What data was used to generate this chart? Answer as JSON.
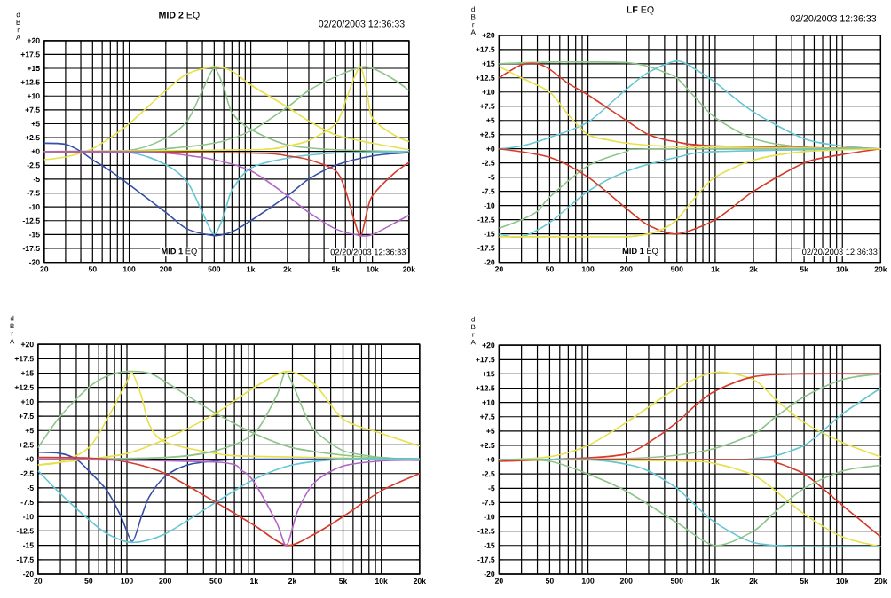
{
  "chart_data": [
    {
      "type": "line",
      "title": "**MID 2** EQ",
      "ylabel": "d B r A",
      "annotations": [
        "02/20/2003 12:36:33",
        "**MID 1** EQ",
        "02/20/2003 12:36:33"
      ],
      "log": "x",
      "grid": true,
      "xlim": [
        20,
        20000
      ],
      "ylim": [
        -20,
        20
      ],
      "xticks": [
        20,
        {
          "value": 30,
          "label": null
        },
        {
          "value": 40,
          "label": null
        },
        50,
        {
          "value": 60,
          "label": null
        },
        {
          "value": 70,
          "label": null
        },
        {
          "value": 80,
          "label": null
        },
        {
          "value": 90,
          "label": null
        },
        100,
        200,
        {
          "value": 300,
          "label": null
        },
        {
          "value": 400,
          "label": null
        },
        500,
        {
          "value": 600,
          "label": null
        },
        {
          "value": 700,
          "label": null
        },
        {
          "value": 800,
          "label": null
        },
        {
          "value": 900,
          "label": null
        },
        {
          "value": 1000,
          "label": "1k"
        },
        {
          "value": 2000,
          "label": "2k"
        },
        {
          "value": 3000,
          "label": null
        },
        {
          "value": 4000,
          "label": null
        },
        {
          "value": 5000,
          "label": "5k"
        },
        {
          "value": 6000,
          "label": null
        },
        {
          "value": 7000,
          "label": null
        },
        {
          "value": 8000,
          "label": null
        },
        {
          "value": 9000,
          "label": null
        },
        {
          "value": 10000,
          "label": "10k"
        },
        {
          "value": 20000,
          "label": "20k"
        }
      ],
      "yticks": [
        {
          "value": 20,
          "label": "+20"
        },
        {
          "value": 17.5,
          "label": "+17.5"
        },
        {
          "value": 15,
          "label": "+15"
        },
        {
          "value": 12.5,
          "label": "+12.5"
        },
        {
          "value": 10,
          "label": "+10"
        },
        {
          "value": 7.5,
          "label": "+7.5"
        },
        {
          "value": 5,
          "label": "+5"
        },
        {
          "value": 2.5,
          "label": "+2.5"
        },
        {
          "value": 0,
          "label": "+0"
        },
        -2.5,
        -5,
        -7.5,
        -10,
        -12.5,
        -15,
        -17.5,
        -20
      ],
      "series": [
        {
          "color": "#e8e04a",
          "x": [
            20,
            30,
            40,
            50,
            70,
            100,
            200,
            300,
            500,
            700,
            1000,
            2000,
            3000,
            5000,
            10000,
            20000
          ],
          "values": [
            -1.5,
            -1,
            -0.3,
            0.5,
            2.5,
            5,
            11,
            14,
            15.3,
            14.5,
            12,
            8,
            5.5,
            3,
            1.5,
            0.3
          ]
        },
        {
          "color": "#8dc48a",
          "x": [
            20,
            100,
            200,
            300,
            400,
            500,
            600,
            700,
            1000,
            2000,
            5000,
            20000
          ],
          "values": [
            0,
            0.2,
            2.4,
            5.5,
            11,
            15,
            11.5,
            7,
            4,
            1.2,
            0.3,
            0
          ]
        },
        {
          "color": "#8dc48a",
          "x": [
            20,
            100,
            200,
            500,
            1000,
            2000,
            3000,
            5000,
            8000,
            10000,
            15000,
            20000
          ],
          "values": [
            0,
            0.1,
            0.5,
            1.5,
            3.7,
            8,
            11,
            13.5,
            15.2,
            15,
            13,
            11
          ]
        },
        {
          "color": "#e8e04a",
          "x": [
            20,
            1000,
            2000,
            3000,
            5000,
            6000,
            7000,
            8000,
            9000,
            10000,
            15000,
            20000
          ],
          "values": [
            0,
            0.3,
            1,
            2,
            5,
            9,
            13,
            15.3,
            11,
            6,
            3,
            1.8
          ]
        },
        {
          "color": "#66c6d4",
          "x": [
            20,
            100,
            200,
            300,
            400,
            500,
            600,
            700,
            1000,
            2000,
            5000,
            20000
          ],
          "values": [
            0,
            -0.2,
            -2.4,
            -5.5,
            -11,
            -15,
            -11.5,
            -7,
            -3,
            -1.2,
            -0.3,
            0
          ]
        },
        {
          "color": "#3550a6",
          "x": [
            20,
            30,
            40,
            50,
            70,
            100,
            200,
            300,
            500,
            700,
            1000,
            2000,
            3000,
            5000,
            10000,
            20000
          ],
          "values": [
            1.5,
            1.3,
            0,
            -1.5,
            -3.5,
            -6,
            -11,
            -14,
            -15.2,
            -14.5,
            -12.5,
            -8,
            -5,
            -2.5,
            -0.8,
            -0.2
          ]
        },
        {
          "color": "#d63a2a",
          "x": [
            20,
            1000,
            2000,
            3000,
            5000,
            6000,
            7000,
            8000,
            9000,
            10000,
            15000,
            20000
          ],
          "values": [
            0,
            -0.3,
            -0.8,
            -1.5,
            -3.5,
            -7,
            -12,
            -15.3,
            -11,
            -8,
            -4,
            -2
          ]
        },
        {
          "color": "#b066c4",
          "x": [
            20,
            100,
            200,
            500,
            1000,
            2000,
            3000,
            5000,
            8000,
            10000,
            15000,
            20000
          ],
          "values": [
            0,
            -0.1,
            -0.3,
            -1.5,
            -3.5,
            -8,
            -11,
            -14,
            -15.2,
            -15,
            -13,
            -11.5
          ]
        }
      ]
    },
    {
      "type": "line",
      "title": "**LF** EQ",
      "ylabel": "d B r A",
      "annotations": [
        "02/20/2003 12:36:33",
        "**MID 1** EQ",
        "02/20/2003 12:36:33"
      ],
      "log": "x",
      "grid": true,
      "xlim": [
        20,
        20000
      ],
      "ylim": [
        -20,
        20
      ],
      "xticks": [
        20,
        {
          "value": 30,
          "label": null
        },
        {
          "value": 40,
          "label": null
        },
        50,
        {
          "value": 60,
          "label": null
        },
        {
          "value": 70,
          "label": null
        },
        {
          "value": 80,
          "label": null
        },
        {
          "value": 90,
          "label": null
        },
        100,
        200,
        {
          "value": 300,
          "label": null
        },
        {
          "value": 400,
          "label": null
        },
        500,
        {
          "value": 600,
          "label": null
        },
        {
          "value": 700,
          "label": null
        },
        {
          "value": 800,
          "label": null
        },
        {
          "value": 900,
          "label": null
        },
        {
          "value": 1000,
          "label": "1k"
        },
        {
          "value": 2000,
          "label": "2k"
        },
        {
          "value": 3000,
          "label": null
        },
        {
          "value": 4000,
          "label": null
        },
        {
          "value": 5000,
          "label": "5k"
        },
        {
          "value": 6000,
          "label": null
        },
        {
          "value": 7000,
          "label": null
        },
        {
          "value": 8000,
          "label": null
        },
        {
          "value": 9000,
          "label": null
        },
        {
          "value": 10000,
          "label": "10k"
        },
        {
          "value": 20000,
          "label": "20k"
        }
      ],
      "yticks": [
        {
          "value": 20,
          "label": "+20"
        },
        {
          "value": 17.5,
          "label": "+17.5"
        },
        {
          "value": 15,
          "label": "+15"
        },
        {
          "value": 12.5,
          "label": "+12.5"
        },
        {
          "value": 10,
          "label": "+10"
        },
        {
          "value": 7.5,
          "label": "+7.5"
        },
        {
          "value": 5,
          "label": "+5"
        },
        {
          "value": 2.5,
          "label": "+2.5"
        },
        {
          "value": 0,
          "label": "+0"
        },
        -2.5,
        -5,
        -7.5,
        -10,
        -12.5,
        -15,
        -17.5,
        -20
      ],
      "series": [
        {
          "color": "#8dc48a",
          "x": [
            20,
            50,
            100,
            200,
            300,
            400,
            500,
            700,
            1000,
            2000,
            5000,
            20000
          ],
          "values": [
            15,
            15.3,
            15.3,
            15.2,
            14.5,
            13.5,
            12.5,
            9,
            5.5,
            1.8,
            0.3,
            0
          ]
        },
        {
          "color": "#66c6d4",
          "x": [
            20,
            30,
            50,
            100,
            200,
            300,
            500,
            700,
            1000,
            2000,
            5000,
            10000,
            20000
          ],
          "values": [
            0,
            0.5,
            2,
            4.7,
            10.5,
            13.5,
            15.5,
            14,
            11.7,
            6.5,
            1.8,
            0.5,
            0
          ]
        },
        {
          "color": "#d63a2a",
          "x": [
            20,
            30,
            40,
            50,
            70,
            100,
            200,
            300,
            500,
            1000,
            20000
          ],
          "values": [
            12.5,
            14.8,
            15,
            14,
            11.5,
            9.5,
            5,
            2.5,
            1.2,
            0.5,
            0
          ]
        },
        {
          "color": "#e8e04a",
          "x": [
            20,
            30,
            50,
            70,
            100,
            150,
            200,
            500,
            20000
          ],
          "values": [
            14.5,
            12.5,
            10,
            6,
            2.5,
            1.5,
            1,
            0.4,
            0
          ]
        },
        {
          "color": "#8dc48a",
          "x": [
            20,
            30,
            40,
            50,
            100,
            200,
            300,
            20000
          ],
          "values": [
            -14,
            -12.5,
            -11,
            -8.5,
            -3,
            -0.5,
            0,
            0
          ]
        },
        {
          "color": "#66c6d4",
          "x": [
            20,
            30,
            50,
            100,
            200,
            500,
            1000,
            20000
          ],
          "values": [
            -15,
            -15.5,
            -13,
            -7.5,
            -4,
            -1.5,
            -0.5,
            0
          ]
        },
        {
          "color": "#d63a2a",
          "x": [
            20,
            50,
            100,
            200,
            300,
            500,
            1000,
            2000,
            5000,
            10000,
            20000
          ],
          "values": [
            0,
            -1.5,
            -5,
            -10.5,
            -13.5,
            -15,
            -12.5,
            -7.5,
            -2.5,
            -1,
            0
          ]
        },
        {
          "color": "#e8e04a",
          "x": [
            20,
            100,
            200,
            300,
            400,
            500,
            700,
            1000,
            2000,
            5000,
            20000
          ],
          "values": [
            -15.5,
            -15.5,
            -15.5,
            -15,
            -14,
            -12.5,
            -8.5,
            -5,
            -2,
            -0.5,
            0
          ]
        }
      ]
    },
    {
      "type": "line",
      "ylabel": "d B r A",
      "log": "x",
      "grid": true,
      "xlim": [
        20,
        20000
      ],
      "ylim": [
        -20,
        20
      ],
      "xticks": [
        20,
        {
          "value": 30,
          "label": null
        },
        {
          "value": 40,
          "label": null
        },
        50,
        {
          "value": 60,
          "label": null
        },
        {
          "value": 70,
          "label": null
        },
        {
          "value": 80,
          "label": null
        },
        {
          "value": 90,
          "label": null
        },
        100,
        200,
        {
          "value": 300,
          "label": null
        },
        {
          "value": 400,
          "label": null
        },
        500,
        {
          "value": 600,
          "label": null
        },
        {
          "value": 700,
          "label": null
        },
        {
          "value": 800,
          "label": null
        },
        {
          "value": 900,
          "label": null
        },
        {
          "value": 1000,
          "label": "1k"
        },
        {
          "value": 2000,
          "label": "2k"
        },
        {
          "value": 3000,
          "label": null
        },
        {
          "value": 4000,
          "label": null
        },
        {
          "value": 5000,
          "label": "5k"
        },
        {
          "value": 6000,
          "label": null
        },
        {
          "value": 7000,
          "label": null
        },
        {
          "value": 8000,
          "label": null
        },
        {
          "value": 9000,
          "label": null
        },
        {
          "value": 10000,
          "label": "10k"
        },
        {
          "value": 20000,
          "label": "20k"
        }
      ],
      "yticks": [
        {
          "value": 20,
          "label": "+20"
        },
        {
          "value": 17.5,
          "label": "+17.5"
        },
        {
          "value": 15,
          "label": "+15"
        },
        {
          "value": 12.5,
          "label": "+12.5"
        },
        {
          "value": 10,
          "label": "+10"
        },
        {
          "value": 7.5,
          "label": "+7.5"
        },
        {
          "value": 5,
          "label": "+5"
        },
        {
          "value": 2.5,
          "label": "+2.5"
        },
        {
          "value": 0,
          "label": "+0"
        },
        -2.5,
        -5,
        -7.5,
        -10,
        -12.5,
        -15,
        -17.5,
        -20
      ],
      "series": [
        {
          "color": "#8dc48a",
          "x": [
            20,
            30,
            50,
            70,
            100,
            150,
            200,
            500,
            1000,
            2000,
            5000,
            10000,
            20000
          ],
          "values": [
            2,
            7.5,
            12.5,
            14.5,
            15.3,
            15,
            13.5,
            8,
            4.5,
            2,
            0.7,
            0.2,
            0
          ]
        },
        {
          "color": "#e8e04a",
          "x": [
            20,
            30,
            50,
            70,
            100,
            110,
            130,
            150,
            200,
            500,
            1000,
            20000
          ],
          "values": [
            -1,
            -0.5,
            2,
            7,
            13.5,
            15,
            11,
            6,
            3,
            1,
            0.5,
            0
          ]
        },
        {
          "color": "#e8e04a",
          "x": [
            20,
            50,
            100,
            200,
            500,
            1000,
            1800,
            3000,
            5000,
            10000,
            20000
          ],
          "values": [
            -1,
            0,
            1,
            3.5,
            8,
            12.5,
            15.3,
            13,
            7,
            4.5,
            2.3
          ]
        },
        {
          "color": "#8dc48a",
          "x": [
            20,
            200,
            500,
            1000,
            1500,
            1800,
            2500,
            3000,
            5000,
            10000,
            20000
          ],
          "values": [
            0,
            0.3,
            1.5,
            4.5,
            11,
            15,
            8,
            5,
            1.5,
            0.3,
            0
          ]
        },
        {
          "color": "#3550a6",
          "x": [
            20,
            30,
            40,
            50,
            70,
            90,
            110,
            130,
            150,
            200,
            300,
            500,
            1000,
            20000
          ],
          "values": [
            1.2,
            1,
            0,
            -2,
            -5.5,
            -10,
            -14.3,
            -10,
            -6.5,
            -3,
            -1,
            -0.3,
            0,
            0
          ]
        },
        {
          "color": "#66c6d4",
          "x": [
            20,
            30,
            50,
            70,
            110,
            200,
            500,
            1000,
            2000,
            5000,
            20000
          ],
          "values": [
            -2,
            -6,
            -10.5,
            -13,
            -14.5,
            -13,
            -7.5,
            -3.5,
            -1,
            0,
            0
          ]
        },
        {
          "color": "#d63a2a",
          "x": [
            20,
            50,
            100,
            200,
            500,
            1000,
            1800,
            3000,
            5000,
            10000,
            20000
          ],
          "values": [
            0.3,
            0.2,
            -0.5,
            -2.5,
            -7.5,
            -11.5,
            -15,
            -13,
            -10,
            -5.5,
            -2.5
          ]
        },
        {
          "color": "#b066c4",
          "x": [
            20,
            500,
            800,
            1000,
            1500,
            1800,
            2200,
            3000,
            5000,
            10000,
            20000
          ],
          "values": [
            0,
            -0.5,
            -2,
            -4,
            -11,
            -15,
            -9,
            -4,
            -1.2,
            -0.3,
            -0.2
          ]
        }
      ]
    },
    {
      "type": "line",
      "ylabel": "d B r A",
      "log": "x",
      "grid": true,
      "xlim": [
        20,
        20000
      ],
      "ylim": [
        -20,
        20
      ],
      "xticks": [
        20,
        {
          "value": 30,
          "label": null
        },
        {
          "value": 40,
          "label": null
        },
        50,
        {
          "value": 60,
          "label": null
        },
        {
          "value": 70,
          "label": null
        },
        {
          "value": 80,
          "label": null
        },
        {
          "value": 90,
          "label": null
        },
        100,
        200,
        {
          "value": 300,
          "label": null
        },
        {
          "value": 400,
          "label": null
        },
        500,
        {
          "value": 600,
          "label": null
        },
        {
          "value": 700,
          "label": null
        },
        {
          "value": 800,
          "label": null
        },
        {
          "value": 900,
          "label": null
        },
        {
          "value": 1000,
          "label": "1k"
        },
        {
          "value": 2000,
          "label": "2k"
        },
        {
          "value": 3000,
          "label": null
        },
        {
          "value": 4000,
          "label": null
        },
        {
          "value": 5000,
          "label": "5k"
        },
        {
          "value": 6000,
          "label": null
        },
        {
          "value": 7000,
          "label": null
        },
        {
          "value": 8000,
          "label": null
        },
        {
          "value": 9000,
          "label": null
        },
        {
          "value": 10000,
          "label": "10k"
        },
        {
          "value": 20000,
          "label": "20k"
        }
      ],
      "yticks": [
        {
          "value": 20,
          "label": "+20"
        },
        {
          "value": 17.5,
          "label": "+17.5"
        },
        {
          "value": 15,
          "label": "+15"
        },
        {
          "value": 12.5,
          "label": "+12.5"
        },
        {
          "value": 10,
          "label": "+10"
        },
        {
          "value": 7.5,
          "label": "+7.5"
        },
        {
          "value": 5,
          "label": "+5"
        },
        {
          "value": 2.5,
          "label": "+2.5"
        },
        {
          "value": 0,
          "label": "+0"
        },
        -2.5,
        -5,
        -7.5,
        -10,
        -12.5,
        -15,
        -17.5,
        -20
      ],
      "series": [
        {
          "color": "#e8e04a",
          "x": [
            20,
            50,
            100,
            200,
            500,
            1000,
            2000,
            3000,
            5000,
            10000,
            20000
          ],
          "values": [
            0,
            0.5,
            2.5,
            6.5,
            12.5,
            15.3,
            14,
            10.5,
            6.5,
            3,
            0.5
          ]
        },
        {
          "color": "#d63a2a",
          "x": [
            20,
            100,
            200,
            300,
            500,
            700,
            1000,
            2000,
            5000,
            20000
          ],
          "values": [
            -0.3,
            0.3,
            1,
            3,
            6.5,
            9.5,
            12,
            14.5,
            15,
            15
          ]
        },
        {
          "color": "#8dc48a",
          "x": [
            20,
            200,
            500,
            1000,
            2000,
            3000,
            5000,
            10000,
            20000
          ],
          "values": [
            0,
            0.2,
            0.8,
            2,
            4.5,
            7.5,
            11,
            14,
            15
          ]
        },
        {
          "color": "#66c6d4",
          "x": [
            20,
            1000,
            2000,
            3000,
            5000,
            7000,
            10000,
            20000
          ],
          "values": [
            0,
            0,
            0.2,
            0.7,
            2.5,
            5,
            8,
            12.5
          ]
        },
        {
          "color": "#e8e04a",
          "x": [
            20,
            500,
            1000,
            2000,
            3000,
            5000,
            10000,
            20000
          ],
          "values": [
            0,
            -0.2,
            -0.7,
            -2.7,
            -5.5,
            -9.5,
            -13.5,
            -15.2
          ]
        },
        {
          "color": "#d63a2a",
          "x": [
            20,
            2000,
            3000,
            5000,
            7000,
            10000,
            20000
          ],
          "values": [
            0,
            0,
            -0.5,
            -2.5,
            -5,
            -8,
            -13.5
          ]
        },
        {
          "color": "#66c6d4",
          "x": [
            20,
            100,
            200,
            300,
            500,
            700,
            1000,
            2000,
            5000,
            20000
          ],
          "values": [
            0,
            0,
            -0.8,
            -2,
            -5,
            -8,
            -11,
            -14.5,
            -15.2,
            -15.2
          ]
        },
        {
          "color": "#8dc48a",
          "x": [
            20,
            50,
            100,
            200,
            500,
            1000,
            2000,
            3000,
            5000,
            10000,
            20000
          ],
          "values": [
            0,
            -0.3,
            -2.5,
            -5.5,
            -11,
            -15,
            -12.5,
            -9,
            -5,
            -2,
            -1
          ]
        }
      ]
    }
  ]
}
